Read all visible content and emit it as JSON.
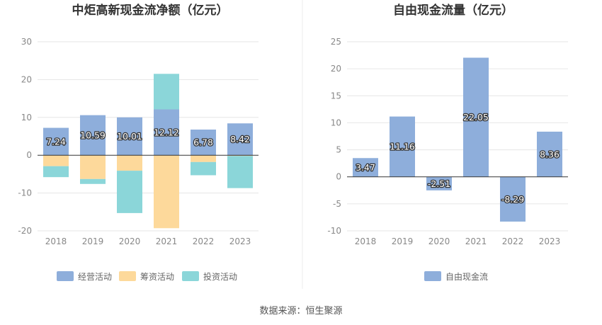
{
  "source_text": "数据来源：恒生聚源",
  "chart_data": [
    {
      "type": "bar",
      "stacked": true,
      "title": "中炬高新现金流净额（亿元）",
      "categories": [
        "2018",
        "2019",
        "2020",
        "2021",
        "2022",
        "2023"
      ],
      "ylim": [
        -20,
        30
      ],
      "yticks": [
        -20,
        -10,
        0,
        10,
        20,
        30
      ],
      "grid": true,
      "legend_position": "bottom",
      "series": [
        {
          "name": "经营活动",
          "color": "#8eaedb",
          "values": [
            7.24,
            10.59,
            10.01,
            12.12,
            6.78,
            8.42
          ],
          "labels": [
            "7.24",
            "10.59",
            "10.01",
            "12.12",
            "6.78",
            "8.42"
          ]
        },
        {
          "name": "筹资活动",
          "color": "#fdd99b",
          "values": [
            -2.9,
            -6.3,
            -4.1,
            -19.3,
            -1.8,
            -0.2
          ]
        },
        {
          "name": "投资活动",
          "color": "#8bd6d9",
          "values": [
            -2.9,
            -1.3,
            -11.2,
            9.4,
            -3.5,
            -8.5
          ]
        }
      ]
    },
    {
      "type": "bar",
      "title": "自由现金流量（亿元）",
      "categories": [
        "2018",
        "2019",
        "2020",
        "2021",
        "2022",
        "2023"
      ],
      "ylim": [
        -10,
        25
      ],
      "yticks": [
        -10,
        -5,
        0,
        5,
        10,
        15,
        20,
        25
      ],
      "grid": true,
      "legend_position": "bottom",
      "series": [
        {
          "name": "自由现金流",
          "color": "#8eaedb",
          "values": [
            3.47,
            11.16,
            -2.51,
            22.05,
            -8.29,
            8.36
          ],
          "labels": [
            "3.47",
            "11.16",
            "-2.51",
            "22.05",
            "-8.29",
            "8.36"
          ]
        }
      ]
    }
  ]
}
